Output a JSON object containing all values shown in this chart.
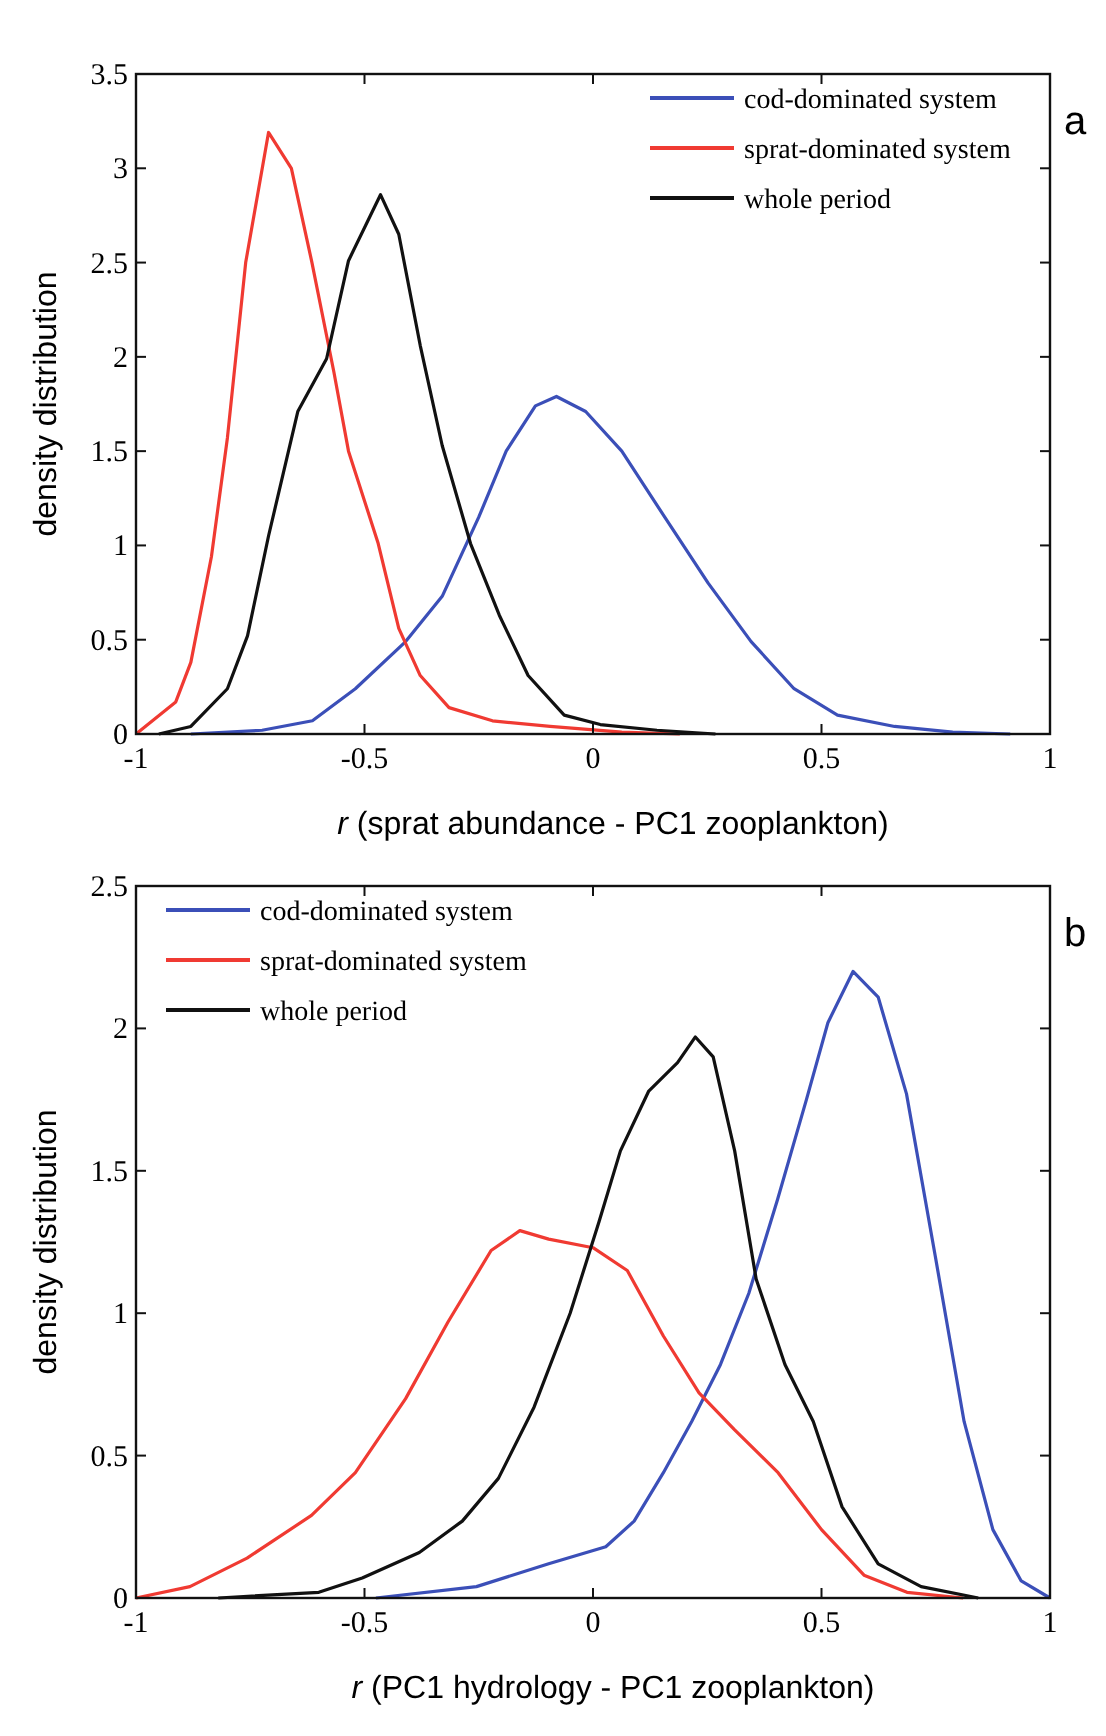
{
  "chart_data": [
    {
      "type": "line",
      "xlabel": "r (sprat abundance - PC1 zooplankton)",
      "ylabel": "density distribution",
      "annotations": [
        "a"
      ],
      "legend": "top right",
      "xlim": [
        -1,
        1
      ],
      "xticks": [
        -1,
        -0.5,
        0,
        0.5,
        1
      ],
      "ylim": [
        0,
        3.5
      ],
      "yticks": [
        0,
        0.5,
        1,
        1.5,
        2,
        2.5,
        3,
        3.5
      ],
      "grid": false,
      "series": [
        {
          "name": "cod-dominated system",
          "color": "#3b4fb8",
          "x": [
            -0.88,
            -0.724,
            -0.614,
            -0.52,
            -0.41,
            -0.33,
            -0.25,
            -0.19,
            -0.126,
            -0.08,
            -0.016,
            0.063,
            0.157,
            0.252,
            0.346,
            0.44,
            0.535,
            0.66,
            0.787,
            0.913
          ],
          "values": [
            0,
            0.02,
            0.07,
            0.24,
            0.49,
            0.73,
            1.15,
            1.5,
            1.74,
            1.79,
            1.71,
            1.5,
            1.15,
            0.8,
            0.49,
            0.24,
            0.1,
            0.04,
            0.01,
            0
          ]
        },
        {
          "name": "sprat-dominated system",
          "color": "#f03a32",
          "x": [
            -1,
            -0.913,
            -0.88,
            -0.835,
            -0.8,
            -0.76,
            -0.71,
            -0.66,
            -0.615,
            -0.567,
            -0.535,
            -0.47,
            -0.425,
            -0.378,
            -0.315,
            -0.22,
            -0.094,
            0.063,
            0.19
          ],
          "values": [
            0,
            0.17,
            0.38,
            0.94,
            1.57,
            2.5,
            3.19,
            3.0,
            2.5,
            1.92,
            1.5,
            1.01,
            0.56,
            0.31,
            0.14,
            0.07,
            0.04,
            0.01,
            0
          ]
        },
        {
          "name": "whole period",
          "color": "#111111",
          "x": [
            -0.95,
            -0.88,
            -0.8,
            -0.756,
            -0.71,
            -0.646,
            -0.583,
            -0.535,
            -0.465,
            -0.425,
            -0.378,
            -0.33,
            -0.268,
            -0.205,
            -0.142,
            -0.063,
            0.016,
            0.14,
            0.268
          ],
          "values": [
            0,
            0.04,
            0.24,
            0.52,
            1.05,
            1.71,
            1.99,
            2.51,
            2.86,
            2.65,
            2.06,
            1.53,
            1.01,
            0.63,
            0.31,
            0.1,
            0.05,
            0.02,
            0
          ]
        }
      ]
    },
    {
      "type": "line",
      "xlabel": "r (PC1 hydrology - PC1 zooplankton)",
      "ylabel": "density distribution",
      "annotations": [
        "b"
      ],
      "legend": "top left",
      "xlim": [
        -1,
        1
      ],
      "xticks": [
        -1,
        -0.5,
        0,
        0.5,
        1
      ],
      "ylim": [
        0,
        2.5
      ],
      "yticks": [
        0,
        0.5,
        1,
        1.5,
        2,
        2.5
      ],
      "grid": false,
      "series": [
        {
          "name": "cod-dominated system",
          "color": "#3b4fb8",
          "x": [
            -0.475,
            -0.255,
            -0.097,
            0.028,
            0.09,
            0.154,
            0.216,
            0.279,
            0.341,
            0.404,
            0.467,
            0.514,
            0.569,
            0.624,
            0.686,
            0.749,
            0.812,
            0.875,
            0.937,
            1
          ],
          "values": [
            0,
            0.04,
            0.12,
            0.18,
            0.27,
            0.44,
            0.62,
            0.82,
            1.07,
            1.4,
            1.75,
            2.02,
            2.2,
            2.11,
            1.77,
            1.2,
            0.62,
            0.24,
            0.06,
            0
          ]
        },
        {
          "name": "sprat-dominated system",
          "color": "#f03a32",
          "x": [
            -1,
            -0.882,
            -0.757,
            -0.616,
            -0.52,
            -0.41,
            -0.317,
            -0.223,
            -0.16,
            -0.097,
            0,
            0.075,
            0.154,
            0.232,
            0.31,
            0.405,
            0.5,
            0.593,
            0.687,
            0.81
          ],
          "values": [
            0,
            0.04,
            0.14,
            0.29,
            0.44,
            0.7,
            0.97,
            1.22,
            1.29,
            1.26,
            1.23,
            1.15,
            0.92,
            0.72,
            0.59,
            0.44,
            0.24,
            0.08,
            0.02,
            0
          ]
        },
        {
          "name": "whole period",
          "color": "#111111",
          "x": [
            -0.82,
            -0.6,
            -0.505,
            -0.38,
            -0.286,
            -0.207,
            -0.129,
            -0.05,
            0.013,
            0.06,
            0.122,
            0.185,
            0.224,
            0.263,
            0.31,
            0.357,
            0.42,
            0.482,
            0.545,
            0.624,
            0.718,
            0.843
          ],
          "values": [
            0,
            0.02,
            0.07,
            0.16,
            0.27,
            0.42,
            0.67,
            1.0,
            1.32,
            1.57,
            1.78,
            1.88,
            1.97,
            1.9,
            1.57,
            1.12,
            0.82,
            0.62,
            0.32,
            0.12,
            0.04,
            0
          ]
        }
      ]
    }
  ]
}
